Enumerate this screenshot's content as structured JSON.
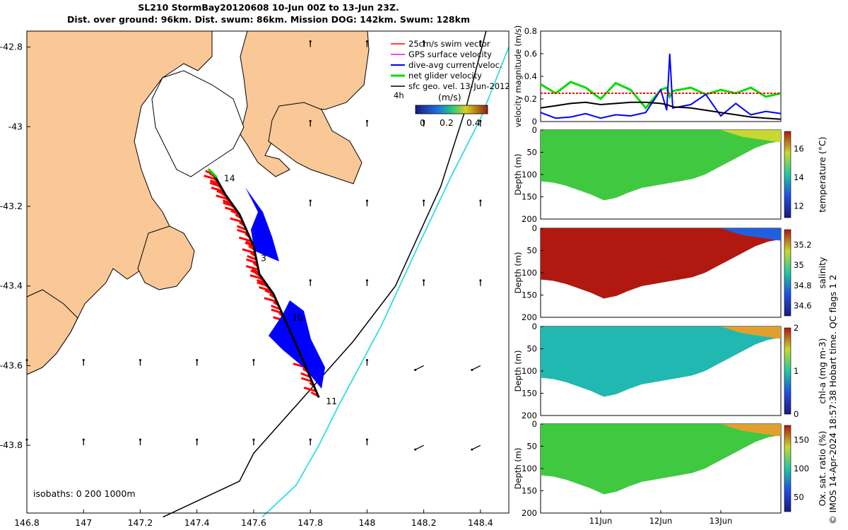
{
  "title": {
    "line1": "SL210 StormBay20120608 10-Jun 00Z to 13-Jun 23Z.",
    "line2": "Dist. over ground: 96km. Dist. swum: 86km. Mission DOG: 142km. Swum: 128km"
  },
  "colors": {
    "land": "#f9c896",
    "swim_vector": "#ff0000",
    "gps_surface": "#ff00ff",
    "dive_avg_current": "#0000ff",
    "net_glider": "#00dd00",
    "sfc_geo": "#000000",
    "isobath_200": "#000000",
    "isobath_1000": "#33dddd"
  },
  "chart_data": [
    {
      "type": "scatter",
      "panel": "map",
      "xlim": [
        146.8,
        148.5
      ],
      "ylim": [
        -43.97,
        -42.76
      ],
      "x_ticks": [
        "146.8",
        "147",
        "147.2",
        "147.4",
        "147.6",
        "147.8",
        "148",
        "148.2",
        "148.4"
      ],
      "y_ticks": [
        "-42.8",
        "-43",
        "-43.2",
        "-43.4",
        "-43.6",
        "-43.8"
      ],
      "legend": {
        "position": "top-right",
        "entries": [
          "25cm/s swim vector",
          "GPS surface velocity",
          "dive-avg current veloc.",
          "net glider velocity",
          "sfc geo. vel. 13-Jun-2012"
        ]
      },
      "time_step_label": "4h",
      "colorbar": {
        "label": "(m/s)",
        "ticks": [
          "0",
          "0.2",
          "0.4"
        ],
        "range": [
          0,
          0.5
        ]
      },
      "isobaths_label": "isobaths: 0   200  1000m",
      "day_markers": [
        {
          "label": "14",
          "lon": 147.48,
          "lat": -43.13
        },
        {
          "label": "3",
          "lon": 147.61,
          "lat": -43.33
        },
        {
          "label": "10",
          "lon": 147.72,
          "lat": -43.48
        },
        {
          "label": "11",
          "lon": 147.84,
          "lat": -43.69
        }
      ],
      "glider_track": [
        [
          147.46,
          -43.12
        ],
        [
          147.5,
          -43.17
        ],
        [
          147.55,
          -43.22
        ],
        [
          147.6,
          -43.3
        ],
        [
          147.62,
          -43.37
        ],
        [
          147.67,
          -43.42
        ],
        [
          147.72,
          -43.5
        ],
        [
          147.77,
          -43.58
        ],
        [
          147.83,
          -43.68
        ]
      ],
      "isobath_200": [
        [
          148.42,
          -42.76
        ],
        [
          148.35,
          -42.95
        ],
        [
          148.26,
          -43.15
        ],
        [
          148.1,
          -43.4
        ],
        [
          147.95,
          -43.54
        ],
        [
          147.75,
          -43.7
        ],
        [
          147.6,
          -43.82
        ],
        [
          147.55,
          -43.89
        ],
        [
          147.28,
          -43.98
        ]
      ],
      "isobath_1000": [
        [
          148.5,
          -42.8
        ],
        [
          148.4,
          -42.98
        ],
        [
          148.3,
          -43.12
        ],
        [
          148.18,
          -43.3
        ],
        [
          148.05,
          -43.5
        ],
        [
          147.9,
          -43.7
        ],
        [
          147.83,
          -43.8
        ],
        [
          147.75,
          -43.9
        ],
        [
          147.63,
          -43.98
        ]
      ]
    },
    {
      "type": "line",
      "panel": "velocity",
      "ylabel": "velocity magnitude (m/s)",
      "ylim": [
        0,
        0.8
      ],
      "y_ticks": [
        "0",
        "0.2",
        "0.4",
        "0.6",
        "0.8"
      ],
      "x": [
        10,
        10.25,
        10.5,
        10.75,
        11,
        11.25,
        11.5,
        11.75,
        12,
        12.1,
        12.15,
        12.2,
        12.5,
        12.75,
        13,
        13.25,
        13.5,
        13.75,
        14
      ],
      "series": [
        {
          "color": "#00dd00",
          "values": [
            0.33,
            0.25,
            0.35,
            0.3,
            0.2,
            0.34,
            0.28,
            0.12,
            0.28,
            0.3,
            0.22,
            0.27,
            0.3,
            0.24,
            0.28,
            0.25,
            0.3,
            0.22,
            0.25
          ]
        },
        {
          "color": "#0000ff",
          "values": [
            0.08,
            0.03,
            0.04,
            0.07,
            0.03,
            0.06,
            0.05,
            0.08,
            0.28,
            0.1,
            0.6,
            0.12,
            0.15,
            0.24,
            0.05,
            0.16,
            0.06,
            0.09,
            0.07
          ]
        },
        {
          "color": "#000000",
          "values": [
            0.12,
            0.14,
            0.16,
            0.17,
            0.15,
            0.16,
            0.17,
            0.17,
            0.16,
            0.15,
            0.14,
            0.13,
            0.12,
            0.1,
            0.08,
            0.06,
            0.04,
            0.03,
            0.02
          ]
        },
        {
          "color": "#ff0000",
          "values": [
            0.25,
            0.25,
            0.25,
            0.25,
            0.25,
            0.25,
            0.25,
            0.25,
            0.25,
            0.25,
            0.25,
            0.25,
            0.25,
            0.25,
            0.25,
            0.25,
            0.25,
            0.25,
            0.25
          ]
        }
      ]
    },
    {
      "type": "heatmap",
      "panel": "temperature",
      "ylabel": "Depth (m)",
      "ylim": [
        200,
        0
      ],
      "y_ticks": [
        "0",
        "50",
        "100",
        "150",
        "200"
      ],
      "colorbar_label": "temperature (°C)",
      "colorbar_ticks": [
        "12",
        "14",
        "16"
      ],
      "colorbar_range": [
        11.2,
        17.2
      ],
      "bottom_depth": [
        115,
        118,
        125,
        135,
        145,
        158,
        152,
        140,
        130,
        125,
        120,
        115,
        110,
        100,
        85,
        70,
        55,
        40,
        30,
        25
      ],
      "bulk_value": 14.5,
      "surface_value_late": 16.3
    },
    {
      "type": "heatmap",
      "panel": "salinity",
      "ylabel": "Depth (m)",
      "ylim": [
        200,
        0
      ],
      "y_ticks": [
        "0",
        "50",
        "100",
        "150",
        "200"
      ],
      "colorbar_label": "salinity",
      "colorbar_ticks": [
        "34.6",
        "34.8",
        "35",
        "35.2"
      ],
      "colorbar_range": [
        34.5,
        35.35
      ],
      "bottom_depth": [
        115,
        118,
        125,
        135,
        145,
        158,
        152,
        140,
        130,
        125,
        120,
        115,
        110,
        100,
        85,
        70,
        55,
        40,
        30,
        25
      ],
      "bulk_value": 35.27,
      "surface_value_late": 34.6
    },
    {
      "type": "heatmap",
      "panel": "chl-a",
      "ylabel": "Depth (m)",
      "ylim": [
        200,
        0
      ],
      "y_ticks": [
        "0",
        "50",
        "100",
        "150",
        "200"
      ],
      "colorbar_label": "chl-a (mg m-3)",
      "colorbar_ticks": [
        "0",
        "1",
        "2"
      ],
      "colorbar_range": [
        0,
        2
      ],
      "bottom_depth": [
        115,
        118,
        125,
        135,
        145,
        158,
        152,
        140,
        130,
        125,
        120,
        115,
        110,
        100,
        85,
        70,
        55,
        40,
        30,
        25
      ],
      "bulk_value": 0.6,
      "surface_value_late": 1.5
    },
    {
      "type": "heatmap",
      "panel": "oxygen",
      "ylabel": "Depth (m)",
      "ylim": [
        200,
        0
      ],
      "y_ticks": [
        "0",
        "50",
        "100",
        "150",
        "200"
      ],
      "x_ticks": [
        "11Jun",
        "12Jun",
        "13Jun"
      ],
      "colorbar_label": "Ox. sat. ratio (%)",
      "colorbar_ticks": [
        "50",
        "100",
        "150"
      ],
      "colorbar_range": [
        25,
        175
      ],
      "bottom_depth": [
        115,
        118,
        125,
        135,
        145,
        158,
        152,
        140,
        130,
        125,
        120,
        115,
        110,
        100,
        85,
        70,
        55,
        40,
        30,
        25
      ],
      "bulk_value": 112,
      "surface_value_late": 150
    }
  ],
  "footer_note": "© IMOS 14-Apr-2024 18:57:38 Hobart time. QC flags 1  2"
}
